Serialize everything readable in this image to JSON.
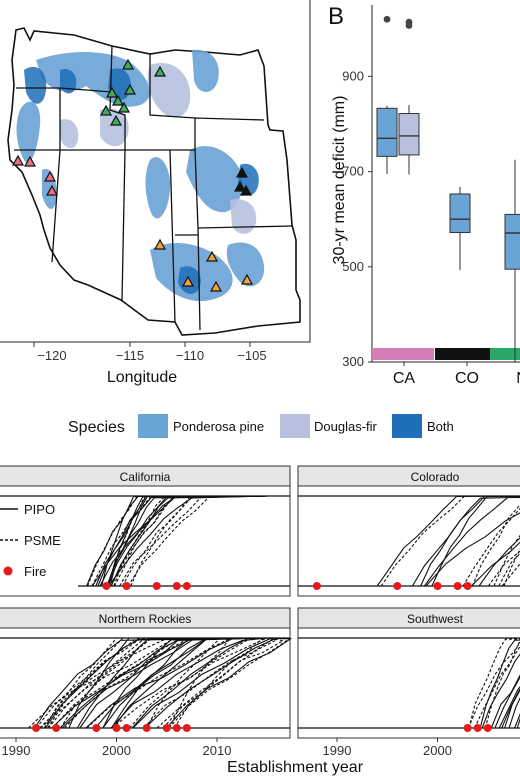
{
  "colors": {
    "ponderosa": "#6aa3d5",
    "douglas": "#b7c1df",
    "both": "#1d6fb8",
    "fire": "#e41a1c",
    "tri_green": "#41ab5d",
    "tri_orange": "#f2a33a",
    "tri_red": "#e8717a",
    "tri_black": "#111111",
    "ca_bar": "#d57db7",
    "co_bar": "#111111",
    "nr_bar": "#2aa86a"
  },
  "map": {
    "xlabel": "Longitude",
    "ticks": [
      "−120",
      "−115",
      "−110",
      "−105"
    ]
  },
  "panel_b": {
    "label": "B",
    "ylabel": "30-yr mean deficit (mm)"
  },
  "legend": {
    "title": "Species",
    "items": [
      "Ponderosa pine",
      "Douglas-fir",
      "Both"
    ]
  },
  "panel_c": {
    "xlabel": "Establishment year",
    "facets": [
      "California",
      "Colorado",
      "Northern Rockies",
      "Southwest"
    ],
    "legend_items": [
      "PIPO",
      "PSME",
      "Fire"
    ]
  },
  "chart_data": [
    {
      "type": "map",
      "xlabel": "Longitude",
      "xticks": [
        -120,
        -115,
        -110,
        -105
      ],
      "legend": [
        "Ponderosa pine",
        "Douglas-fir",
        "Both"
      ]
    },
    {
      "type": "box",
      "ylabel": "30-yr mean deficit (mm)",
      "ylim": [
        300,
        1050
      ],
      "yticks": [
        300,
        500,
        700,
        900
      ],
      "categories": [
        "CA",
        "CO",
        "N"
      ],
      "boxes": [
        {
          "category": "CA",
          "species": "Ponderosa pine",
          "min": 695,
          "q1": 732,
          "median": 770,
          "q3": 833,
          "max": 838,
          "outliers": [
            1020
          ]
        },
        {
          "category": "CA",
          "species": "Douglas-fir",
          "min": 694,
          "q1": 735,
          "median": 775,
          "q3": 822,
          "max": 840,
          "outliers": [
            1014,
            1007
          ]
        },
        {
          "category": "CO",
          "species": "Ponderosa pine",
          "min": 493,
          "q1": 572,
          "median": 600,
          "q3": 653,
          "max": 668,
          "outliers": []
        },
        {
          "category": "N",
          "species": "Ponderosa pine",
          "min": 300,
          "q1": 495,
          "median": 571,
          "q3": 610,
          "max": 725,
          "outliers": []
        }
      ]
    },
    {
      "type": "line",
      "xlabel": "Establishment year",
      "xticks": [
        1990,
        2000,
        2010
      ],
      "xlim": [
        1986,
        2017
      ],
      "facets": [
        {
          "name": "California",
          "fire_years": [
            1999,
            2001,
            2004,
            2006,
            2007
          ]
        },
        {
          "name": "Colorado",
          "fire_years": [
            1988,
            1996,
            2000,
            2002,
            2003
          ]
        },
        {
          "name": "Northern Rockies",
          "fire_years": [
            1992,
            1994,
            1998,
            2000,
            2001,
            2003,
            2005,
            2006,
            2007
          ]
        },
        {
          "name": "Southwest",
          "fire_years": [
            2003,
            2004,
            2005
          ]
        }
      ],
      "series": [
        "PIPO",
        "PSME",
        "Fire"
      ]
    }
  ]
}
